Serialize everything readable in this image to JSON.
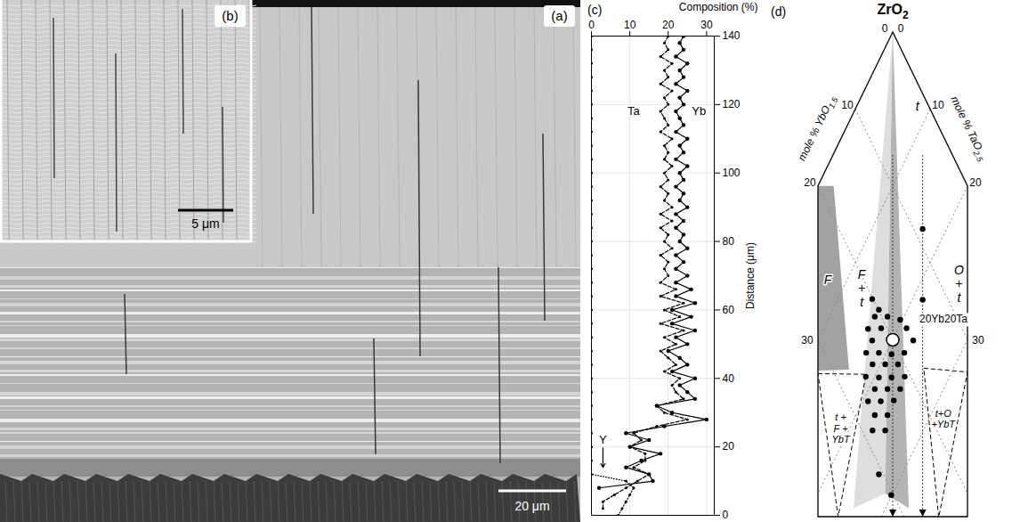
{
  "chart_data": {
    "type": "line",
    "title": "(c)",
    "x_label": "Composition (%)",
    "y_label": "Distance (μm)",
    "xlim": [
      0,
      32
    ],
    "xticks": [
      0,
      10,
      20,
      30
    ],
    "ylim": [
      0,
      140
    ],
    "yticks": [
      0,
      20,
      40,
      60,
      80,
      100,
      120,
      140
    ],
    "grid": true,
    "series": [
      {
        "name": "Ta",
        "color": "#000000",
        "line_style": "dashed",
        "marker": "circle",
        "y": [
          2,
          4,
          6,
          8,
          10,
          12,
          14,
          16,
          18,
          20,
          22,
          24,
          26,
          28,
          30,
          32,
          34,
          36,
          38,
          40,
          42,
          44,
          46,
          48,
          50,
          52,
          54,
          56,
          58,
          60,
          62,
          64,
          66,
          68,
          70,
          72,
          74,
          76,
          78,
          80,
          82,
          84,
          86,
          88,
          90,
          92,
          94,
          96,
          98,
          100,
          102,
          104,
          106,
          108,
          110,
          112,
          114,
          116,
          118,
          120,
          122,
          124,
          126,
          128,
          130,
          132,
          134,
          136,
          138,
          140
        ],
        "values": [
          3,
          3,
          6,
          9,
          12,
          15,
          11,
          14,
          14,
          10,
          13,
          11,
          17,
          25,
          19,
          17,
          24,
          22,
          21,
          23,
          19,
          22,
          20,
          18,
          22,
          19,
          24,
          18,
          23,
          19,
          24,
          18,
          22,
          18,
          20,
          19,
          20,
          18,
          21,
          19,
          20,
          18,
          21,
          18,
          21,
          19,
          20,
          18,
          20,
          19,
          21,
          19,
          20,
          19,
          21,
          18,
          20,
          19,
          18,
          20,
          19,
          21,
          18,
          20,
          19,
          21,
          18,
          20,
          19,
          20
        ]
      },
      {
        "name": "Yb",
        "color": "#000000",
        "line_style": "solid",
        "marker": "circle",
        "y": [
          8,
          10,
          12,
          14,
          16,
          18,
          20,
          22,
          24,
          26,
          28,
          30,
          32,
          34,
          36,
          38,
          40,
          42,
          44,
          46,
          48,
          50,
          52,
          54,
          56,
          58,
          60,
          62,
          64,
          66,
          68,
          70,
          72,
          74,
          76,
          78,
          80,
          82,
          84,
          86,
          88,
          90,
          92,
          94,
          96,
          98,
          100,
          102,
          104,
          106,
          108,
          110,
          112,
          114,
          116,
          118,
          120,
          122,
          124,
          126,
          128,
          130,
          132,
          134,
          136,
          138,
          140
        ],
        "values": [
          2,
          16,
          15,
          9,
          13,
          18,
          10,
          15,
          9,
          19,
          30,
          21,
          17,
          27,
          25,
          23,
          27,
          21,
          25,
          23,
          20,
          25,
          22,
          27,
          21,
          26,
          21,
          27,
          22,
          26,
          22,
          25,
          22,
          24,
          22,
          25,
          23,
          24,
          22,
          24,
          22,
          25,
          23,
          24,
          22,
          24,
          23,
          25,
          22,
          24,
          23,
          25,
          22,
          24,
          23,
          22,
          24,
          23,
          25,
          22,
          24,
          23,
          25,
          22,
          24,
          23,
          24
        ]
      },
      {
        "name": "Y",
        "color": "#000000",
        "line_style": "dotted",
        "marker": "circle",
        "y": [
          0,
          2,
          4,
          6,
          8,
          10,
          12,
          16,
          20,
          24,
          28,
          32,
          36,
          40,
          44,
          48,
          52,
          56,
          60,
          64,
          68,
          72,
          76,
          80,
          84,
          88,
          92,
          96,
          100,
          104,
          108,
          112,
          116,
          120,
          124,
          128,
          132,
          136,
          140
        ],
        "values": [
          7,
          8,
          9,
          10,
          11,
          9,
          0,
          0,
          0,
          0,
          0,
          0,
          0,
          0,
          0,
          0,
          0,
          0,
          0,
          0,
          0,
          0,
          0,
          0,
          0,
          0,
          0,
          0,
          0,
          0,
          0,
          0,
          0,
          0,
          0,
          0,
          0,
          0,
          0
        ]
      }
    ],
    "annotations": [
      {
        "text": "Ta",
        "x": 11,
        "y": 118
      },
      {
        "text": "Yb",
        "x": 28,
        "y": 118
      },
      {
        "text": "Y",
        "x": 3,
        "y": 22,
        "arrow_to": 14
      }
    ]
  },
  "micrographs": [
    {
      "label": "(a)",
      "scale_bar": "20 μm"
    },
    {
      "label": "(b)",
      "scale_bar": "5 μm"
    }
  ],
  "phase_diagram": {
    "title": "(d)",
    "apex": "ZrO2",
    "left_axis": {
      "label": "mole % YbO1.5",
      "ticks": [
        0,
        10,
        20,
        30
      ]
    },
    "right_axis": {
      "label": "mole % TaO2.5",
      "ticks": [
        0,
        10,
        20,
        30
      ]
    },
    "side_lim": 20,
    "total_lim": 63,
    "regions": [
      {
        "label": [
          "F",
          "+",
          "t"
        ],
        "label_at": [
          20.8,
          12.5
        ],
        "color": "#dedede",
        "vertices": [
          [
            0,
            0
          ],
          [
            36.2,
            25.7
          ],
          [
            31,
            29
          ]
        ]
      },
      {
        "label": [
          "t"
        ],
        "label_at": [
          1.5,
          8.1
        ],
        "color": "#b4b4b4",
        "vertices": [
          [
            0,
            0
          ],
          [
            31,
            29
          ],
          [
            28.8,
            33.1
          ]
        ]
      },
      {
        "label": [
          "F"
        ],
        "label_at": [
          24.8,
          7.4
        ],
        "color": "#a2a2a2",
        "vertices": [
          [
            20,
            0
          ],
          [
            17.9,
            2.1
          ],
          [
            27.8,
            16.1
          ],
          [
            32,
            12
          ]
        ]
      }
    ],
    "three_phase": [
      {
        "label": [
          "t +",
          "F +",
          "YbT"
        ],
        "label_at": [
          32.7,
          18.8
        ],
        "vertices": [
          [
            32.2,
            12.2
          ],
          [
            25.8,
            18.7
          ],
          [
            38.8,
            24.2
          ]
        ]
      },
      {
        "label": [
          "t+O",
          "+YbT"
        ],
        "label_at": [
          18.4,
          31.9
        ],
        "vertices": [
          [
            17.7,
            26
          ],
          [
            12.1,
            32.1
          ],
          [
            25.4,
            37.7
          ]
        ]
      }
    ],
    "labels": [
      {
        "text": [
          "O",
          "+",
          "t"
        ],
        "at": [
          7.5,
          25.2
        ]
      }
    ],
    "guides": [
      [
        [
          8,
          8
        ],
        [
          31.5,
          31.5
        ]
      ],
      [
        [
          4,
          12
        ],
        [
          27.5,
          35.5
        ]
      ]
    ],
    "points": [
      [
        20.9,
        16.1
      ],
      [
        19.2,
        17.8
      ],
      [
        17.7,
        19.7
      ],
      [
        22.6,
        16.0
      ],
      [
        20.8,
        17.7
      ],
      [
        17.4,
        21.1
      ],
      [
        22.8,
        17.3
      ],
      [
        17.3,
        22.8
      ],
      [
        24.4,
        17.3
      ],
      [
        22.7,
        19.0
      ],
      [
        21.1,
        20.8
      ],
      [
        19.3,
        22.4
      ],
      [
        24.3,
        18.9
      ],
      [
        22.6,
        20.6
      ],
      [
        20.9,
        22.3
      ],
      [
        26.0,
        18.8
      ],
      [
        24.3,
        20.6
      ],
      [
        22.6,
        22.3
      ],
      [
        20.8,
        24.0
      ],
      [
        25.6,
        20.8
      ],
      [
        23.9,
        22.5
      ],
      [
        22.2,
        24.2
      ],
      [
        27.3,
        20.7
      ],
      [
        25.6,
        22.4
      ],
      [
        23.8,
        24.1
      ],
      [
        27.3,
        22.5
      ],
      [
        25.6,
        24.2
      ],
      [
        28.6,
        23.2
      ],
      [
        26.9,
        24.9
      ],
      [
        30.6,
        26.9
      ],
      [
        30.3,
        29.9
      ],
      [
        8.8,
        16.8
      ],
      [
        20.1,
        14.6
      ],
      [
        19.9,
        16.2
      ],
      [
        13.4,
        21.4
      ]
    ],
    "reference": {
      "label": "20Yb20Ta",
      "at": [
        20,
        20
      ]
    }
  }
}
